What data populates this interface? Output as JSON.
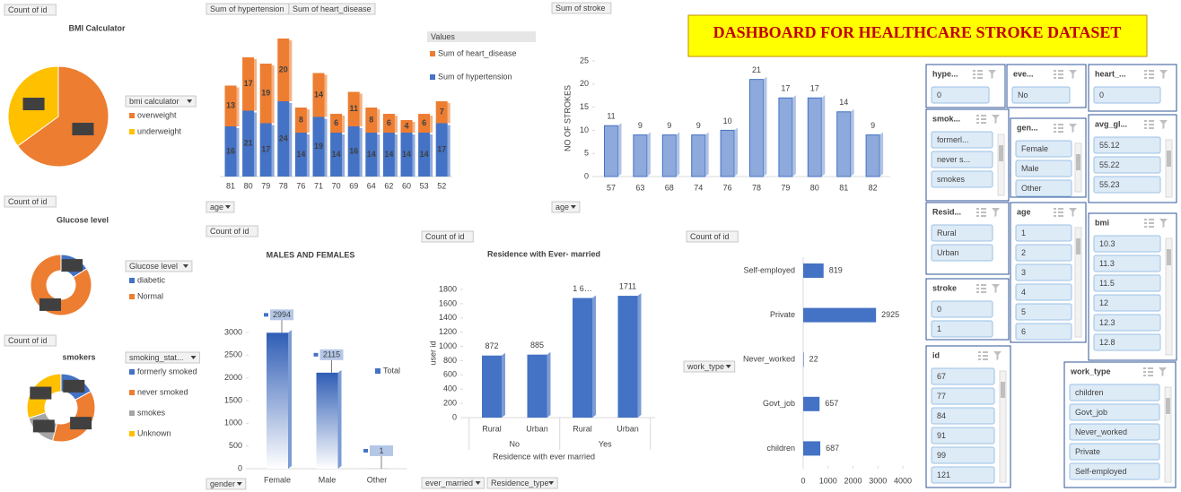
{
  "dashboard_title": "DASHBOARD FOR HEALTHCARE STROKE DATASET",
  "chart_data": [
    {
      "type": "pie",
      "title": "BMI  Calculator",
      "field_buttons": [
        "Count of id"
      ],
      "legend_title": "bmi calculator",
      "categories": [
        "overweight",
        "underweight"
      ],
      "values": [
        65,
        35
      ],
      "value_labels": [
        "65%",
        "35%"
      ],
      "colors": [
        "#ED7D31",
        "#FFC000"
      ]
    },
    {
      "type": "doughnut",
      "title": "Glucose level",
      "field_buttons": [
        "Count of id"
      ],
      "legend_title": "Glucose level",
      "categories": [
        "diabetic",
        "Normal"
      ],
      "values": [
        16,
        84
      ],
      "value_labels": [
        "16%",
        "84%"
      ],
      "colors": [
        "#4472C4",
        "#ED7D31"
      ]
    },
    {
      "type": "doughnut",
      "title": "smokers",
      "field_buttons": [
        "Count of id"
      ],
      "legend_title": "smoking_stat...",
      "categories": [
        "formerly smoked",
        "never smoked",
        "smokes",
        "Unknown"
      ],
      "values": [
        17,
        37,
        16,
        30
      ],
      "value_labels": [
        "17%",
        "37%",
        "16%",
        "30%"
      ],
      "colors": [
        "#4472C4",
        "#ED7D31",
        "#A5A5A5",
        "#FFC000"
      ]
    },
    {
      "type": "stacked_bar",
      "field_buttons": [
        "Sum of hypertension",
        "Sum of heart_disease"
      ],
      "axis_buttons": [
        "age"
      ],
      "legend_title": "Values",
      "categories": [
        "81",
        "80",
        "79",
        "78",
        "76",
        "71",
        "70",
        "69",
        "64",
        "62",
        "60",
        "53",
        "52"
      ],
      "series": [
        {
          "name": "Sum of hypertension",
          "color": "#4472C4",
          "values": [
            16,
            21,
            17,
            24,
            14,
            19,
            14,
            16,
            14,
            14,
            14,
            14,
            17
          ]
        },
        {
          "name": "Sum of heart_disease",
          "color": "#ED7D31",
          "values": [
            13,
            17,
            19,
            20,
            8,
            14,
            6,
            11,
            8,
            6,
            4,
            6,
            7
          ]
        }
      ]
    },
    {
      "type": "bar",
      "field_buttons": [
        "Sum of stroke"
      ],
      "axis_buttons": [
        "age"
      ],
      "y_title": "NO OF STROKES",
      "categories": [
        "57",
        "63",
        "68",
        "74",
        "76",
        "78",
        "79",
        "80",
        "81",
        "82"
      ],
      "values": [
        11,
        9,
        9,
        9,
        10,
        21,
        17,
        17,
        14,
        9
      ],
      "color": "#8EA9DB",
      "ylim": [
        0,
        25
      ],
      "yticks": [
        0,
        5,
        10,
        15,
        20,
        25
      ]
    },
    {
      "type": "bar",
      "title": "MALES AND FEMALES",
      "field_buttons": [
        "Count of id"
      ],
      "axis_buttons": [
        "gender"
      ],
      "categories": [
        "Female",
        "Male",
        "Other"
      ],
      "series": [
        {
          "name": "Total",
          "color": "#4472C4",
          "values": [
            2994,
            2115,
            1
          ]
        }
      ],
      "ylim": [
        0,
        3000
      ],
      "yticks": [
        0,
        500,
        1000,
        1500,
        2000,
        2500,
        3000
      ]
    },
    {
      "type": "bar",
      "title": "Residence with Ever- married",
      "field_buttons": [
        "Count of id"
      ],
      "axis_buttons": [
        "ever_married",
        "Residence_type"
      ],
      "y_title": "user id",
      "x_title": "Residence with ever married",
      "groups": [
        "No",
        "Yes"
      ],
      "categories": [
        "Rural",
        "Urban",
        "Rural",
        "Urban"
      ],
      "values": [
        872,
        885,
        1680,
        1711
      ],
      "value_labels": [
        "872",
        "885",
        "1 6…",
        "1711"
      ],
      "color": "#4472C4",
      "ylim": [
        0,
        1800
      ],
      "yticks": [
        0,
        200,
        400,
        600,
        800,
        1000,
        1200,
        1400,
        1600,
        1800
      ]
    },
    {
      "type": "hbar",
      "field_buttons": [
        "Count of id"
      ],
      "axis_buttons": [
        "work_type"
      ],
      "categories": [
        "Self-employed",
        "Private",
        "Never_worked",
        "Govt_job",
        "children"
      ],
      "values": [
        819,
        2925,
        22,
        657,
        687
      ],
      "color": "#4472C4",
      "xlim": [
        0,
        4000
      ],
      "xticks": [
        0,
        1000,
        2000,
        3000,
        4000
      ]
    }
  ],
  "slicers": [
    {
      "title": "hype...",
      "items": [
        "0"
      ]
    },
    {
      "title": "eve...",
      "items": [
        "No"
      ]
    },
    {
      "title": "heart_...",
      "items": [
        "0"
      ]
    },
    {
      "title": "smok...",
      "items": [
        "formerl...",
        "never s...",
        "smokes"
      ]
    },
    {
      "title": "gen...",
      "items": [
        "Female",
        "Male",
        "Other"
      ]
    },
    {
      "title": "avg_gl...",
      "items": [
        "55.12",
        "55.22",
        "55.23"
      ]
    },
    {
      "title": "Resid...",
      "items": [
        "Rural",
        "Urban"
      ]
    },
    {
      "title": "age",
      "items": [
        "1",
        "2",
        "3",
        "4",
        "5",
        "6"
      ]
    },
    {
      "title": "bmi",
      "items": [
        "10.3",
        "11.3",
        "11.5",
        "12",
        "12.3",
        "12.8"
      ]
    },
    {
      "title": "stroke",
      "items": [
        "0",
        "1"
      ]
    },
    {
      "title": "id",
      "items": [
        "67",
        "77",
        "84",
        "91",
        "99",
        "121"
      ]
    },
    {
      "title": "work_type",
      "items": [
        "children",
        "Govt_job",
        "Never_worked",
        "Private",
        "Self-employed"
      ]
    }
  ]
}
